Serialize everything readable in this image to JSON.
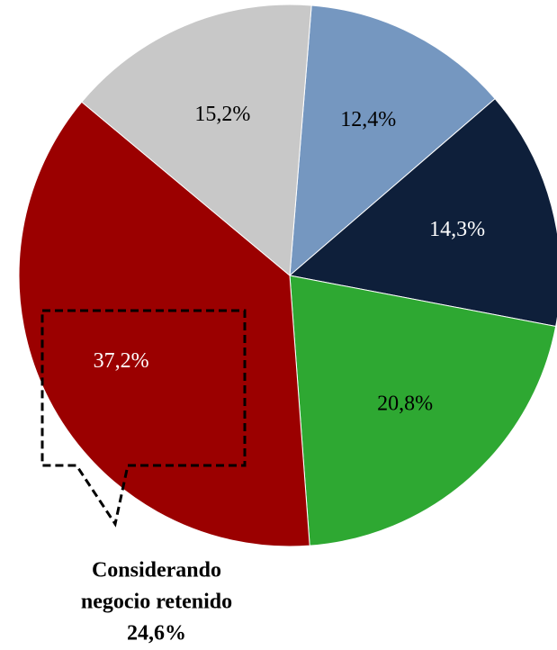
{
  "chart_data": {
    "type": "pie",
    "categories": [
      null,
      null,
      null,
      null,
      null
    ],
    "values": [
      12.4,
      14.3,
      20.8,
      37.2,
      15.2
    ],
    "value_labels": [
      "12,4%",
      "14,3%",
      "20,8%",
      "37,2%",
      "15,2%"
    ],
    "colors": [
      "#7597c0",
      "#0e1f3a",
      "#2ea832",
      "#9b0000",
      "#c8c8c8"
    ],
    "annotation": [
      "Considerando",
      "negocio retenido",
      "24,6%"
    ]
  }
}
